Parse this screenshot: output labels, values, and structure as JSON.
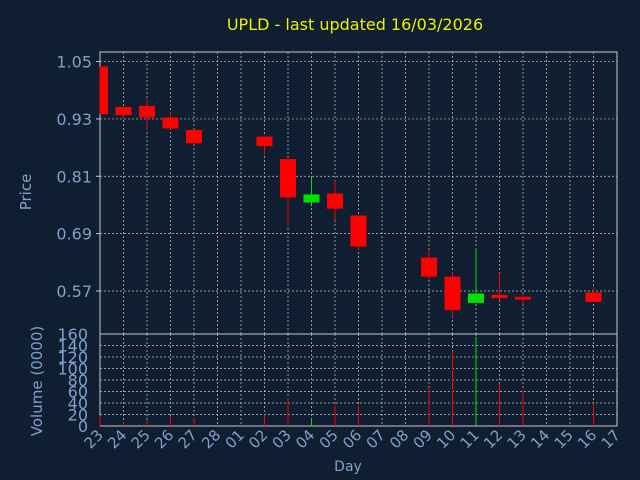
{
  "chart_data": {
    "type": "candlestick",
    "title": "UPLD - last updated 16/03/2026",
    "xlabel": "Day",
    "x_ticks": [
      "23",
      "24",
      "25",
      "26",
      "27",
      "28",
      "01",
      "02",
      "03",
      "04",
      "05",
      "06",
      "07",
      "08",
      "09",
      "10",
      "11",
      "12",
      "13",
      "14",
      "15",
      "16",
      "17"
    ],
    "price_panel": {
      "ylabel": "Price",
      "ylim": [
        0.48,
        1.07
      ],
      "y_ticks": [
        1.05,
        0.93,
        0.81,
        0.69,
        0.57
      ],
      "y_tick_labels": [
        "1.05",
        "0.93",
        "0.81",
        "0.69",
        "0.57"
      ],
      "grid": true,
      "candles": [
        {
          "day": "23",
          "open": 1.04,
          "high": 1.04,
          "low": 0.94,
          "close": 0.94
        },
        {
          "day": "24",
          "open": 0.955,
          "high": 0.955,
          "low": 0.93,
          "close": 0.938
        },
        {
          "day": "25",
          "open": 0.957,
          "high": 0.972,
          "low": 0.908,
          "close": 0.933
        },
        {
          "day": "26",
          "open": 0.933,
          "high": 0.945,
          "low": 0.908,
          "close": 0.91
        },
        {
          "day": "27",
          "open": 0.907,
          "high": 0.908,
          "low": 0.877,
          "close": 0.879
        },
        {
          "day": "02",
          "open": 0.893,
          "high": 0.895,
          "low": 0.855,
          "close": 0.873
        },
        {
          "day": "03",
          "open": 0.846,
          "high": 0.846,
          "low": 0.703,
          "close": 0.766
        },
        {
          "day": "04",
          "open": 0.755,
          "high": 0.806,
          "low": 0.752,
          "close": 0.772
        },
        {
          "day": "05",
          "open": 0.774,
          "high": 0.8,
          "low": 0.718,
          "close": 0.742
        },
        {
          "day": "06",
          "open": 0.728,
          "high": 0.728,
          "low": 0.656,
          "close": 0.663
        },
        {
          "day": "09",
          "open": 0.64,
          "high": 0.655,
          "low": 0.595,
          "close": 0.6
        },
        {
          "day": "10",
          "open": 0.6,
          "high": 0.61,
          "low": 0.515,
          "close": 0.53
        },
        {
          "day": "11",
          "open": 0.545,
          "high": 0.66,
          "low": 0.545,
          "close": 0.565
        },
        {
          "day": "12",
          "open": 0.562,
          "high": 0.608,
          "low": 0.552,
          "close": 0.555
        },
        {
          "day": "13",
          "open": 0.558,
          "high": 0.563,
          "low": 0.541,
          "close": 0.552
        },
        {
          "day": "16",
          "open": 0.567,
          "high": 0.578,
          "low": 0.55,
          "close": 0.547
        }
      ]
    },
    "volume_panel": {
      "ylabel": "Volume (0000)",
      "ylim": [
        0,
        160
      ],
      "y_ticks": [
        0,
        20,
        40,
        60,
        80,
        100,
        120,
        140,
        160
      ],
      "grid": true,
      "bars": [
        {
          "day": "23",
          "value": 18,
          "direction": "down"
        },
        {
          "day": "24",
          "value": 6,
          "direction": "down"
        },
        {
          "day": "25",
          "value": 10,
          "direction": "down"
        },
        {
          "day": "26",
          "value": 18,
          "direction": "down"
        },
        {
          "day": "27",
          "value": 14,
          "direction": "down"
        },
        {
          "day": "02",
          "value": 20,
          "direction": "down"
        },
        {
          "day": "03",
          "value": 48,
          "direction": "down"
        },
        {
          "day": "04",
          "value": 12,
          "direction": "up"
        },
        {
          "day": "05",
          "value": 36,
          "direction": "down"
        },
        {
          "day": "06",
          "value": 36,
          "direction": "down"
        },
        {
          "day": "09",
          "value": 65,
          "direction": "down"
        },
        {
          "day": "10",
          "value": 130,
          "direction": "down"
        },
        {
          "day": "11",
          "value": 155,
          "direction": "up"
        },
        {
          "day": "12",
          "value": 74,
          "direction": "down"
        },
        {
          "day": "13",
          "value": 62,
          "direction": "down"
        },
        {
          "day": "16",
          "value": 40,
          "direction": "down"
        }
      ]
    },
    "colors": {
      "background": "#0f1e30",
      "up": "#00e000",
      "down": "#ff0000",
      "grid": "#c8c8c8",
      "axis_text": "#7fa0c8",
      "title": "#f0f000"
    }
  }
}
